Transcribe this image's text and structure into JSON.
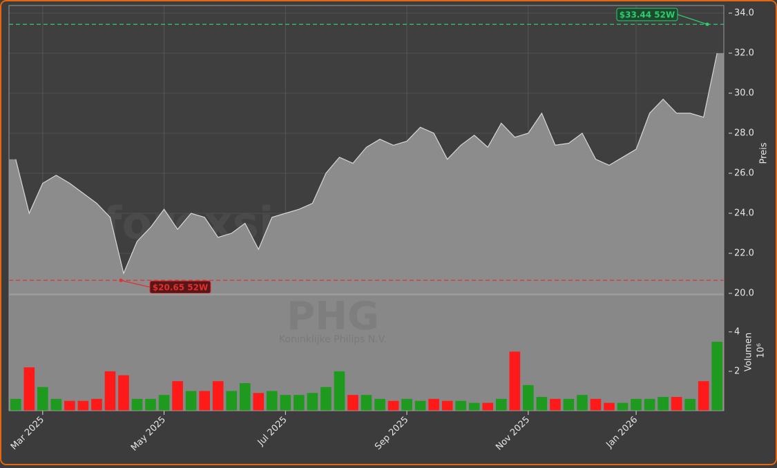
{
  "chart_data": [
    {
      "type": "area",
      "y_label": "Preis",
      "color": "#8c8c8c",
      "line_color": "#d8d8d8",
      "values": [
        26.7,
        24.0,
        25.5,
        25.9,
        25.5,
        25.0,
        24.5,
        23.8,
        21.0,
        22.6,
        23.3,
        24.2,
        23.2,
        24.0,
        23.8,
        22.8,
        23.0,
        23.5,
        22.2,
        23.8,
        24.0,
        24.2,
        24.5,
        26.0,
        26.8,
        26.5,
        27.3,
        27.7,
        27.4,
        27.6,
        28.3,
        28.0,
        26.7,
        27.4,
        27.9,
        27.3,
        28.5,
        27.8,
        28.0,
        29.0,
        27.4,
        27.5,
        28.0,
        26.7,
        26.4,
        26.8,
        27.2,
        29.0,
        29.7,
        29.0,
        29.0,
        28.8,
        32.0
      ],
      "ylim": [
        20,
        34
      ],
      "yticks": [
        {
          "value": 20,
          "label": "20.0"
        },
        {
          "value": 22,
          "label": "22.0"
        },
        {
          "value": 24,
          "label": "24.0"
        },
        {
          "value": 26,
          "label": "26.0"
        },
        {
          "value": 28,
          "label": "28.0"
        },
        {
          "value": 30,
          "label": "30.0"
        },
        {
          "value": 32,
          "label": "32.0"
        },
        {
          "value": 34,
          "label": "34.0"
        }
      ],
      "grid": true,
      "high": {
        "value": 33.44,
        "label": "$33.44 52W",
        "color": "#2ecc71"
      },
      "low": {
        "value": 20.65,
        "label": "$20.65 52W",
        "color": "#e03030"
      },
      "watermark": "forexsignale.trade"
    },
    {
      "type": "bar",
      "y_label": "Volumen",
      "scale_label": "10⁶",
      "symbol": "PHG",
      "company": "Koninklijke Philips N.V.",
      "up_color": "#1e9a1e",
      "down_color": "#ff1a1a",
      "categories": [
        null,
        null,
        "Mar 2025",
        null,
        null,
        null,
        null,
        null,
        null,
        null,
        null,
        "May 2025",
        null,
        null,
        null,
        null,
        null,
        null,
        null,
        null,
        "Jul 2025",
        null,
        null,
        null,
        null,
        null,
        null,
        null,
        null,
        "Sep 2025",
        null,
        null,
        null,
        null,
        null,
        null,
        null,
        null,
        "Nov 2025",
        null,
        null,
        null,
        null,
        null,
        null,
        null,
        "Jan 2026",
        null,
        null,
        null,
        null,
        null,
        null
      ],
      "values": [
        0.6,
        2.2,
        1.2,
        0.6,
        0.5,
        0.5,
        0.6,
        2.0,
        1.8,
        0.6,
        0.6,
        0.8,
        1.5,
        1.0,
        1.0,
        1.5,
        1.0,
        1.4,
        0.9,
        1.0,
        0.8,
        0.8,
        0.9,
        1.2,
        2.0,
        0.8,
        0.8,
        0.6,
        0.5,
        0.6,
        0.5,
        0.6,
        0.5,
        0.5,
        0.4,
        0.4,
        0.6,
        3.0,
        1.3,
        0.7,
        0.6,
        0.6,
        0.8,
        0.6,
        0.4,
        0.4,
        0.6,
        0.6,
        0.7,
        0.7,
        0.6,
        1.5,
        3.5
      ],
      "ylim": [
        0,
        5.85
      ],
      "yticks": [
        2,
        4
      ]
    }
  ]
}
